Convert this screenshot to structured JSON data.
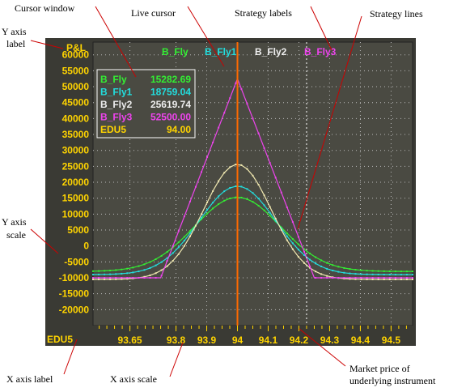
{
  "annotations": {
    "cursor_window": "Cursor window",
    "live_cursor": "Live cursor",
    "strategy_labels": "Strategy labels",
    "strategy_lines": "Strategy lines",
    "y_axis_label_line1": "Y axis",
    "y_axis_label_line2": "label",
    "y_axis_scale_line1": "Y axis",
    "y_axis_scale_line2": "scale",
    "x_axis_label": "X axis label",
    "x_axis_scale": "X axis scale",
    "market_price_line1": "Market price of",
    "market_price_line2": "underlying instrument"
  },
  "colors": {
    "panel_bg": "#4a4a42",
    "outer_bg": "#3a3a34",
    "axis_text": "#ffd400",
    "cursor_line": "#ff6a00",
    "grid": "#bbbbbb"
  },
  "chart_data": {
    "type": "line",
    "ylabel": "P&L",
    "xlabel": "EDU5",
    "xlim": [
      93.53,
      94.57
    ],
    "ylim": [
      -25000,
      64000
    ],
    "x_ticks": [
      93.65,
      93.8,
      93.9,
      94,
      94.1,
      94.2,
      94.3,
      94.4,
      94.5
    ],
    "x_tick_labels": [
      "93.65",
      "93.8",
      "93.9",
      "94",
      "94.1",
      "94.2",
      "94.3",
      "94.4",
      "94.5"
    ],
    "y_ticks": [
      60000,
      55000,
      50000,
      45000,
      40000,
      35000,
      30000,
      25000,
      20000,
      15000,
      10000,
      5000,
      0,
      -5000,
      -10000,
      -15000,
      -20000
    ],
    "y_tick_labels": [
      "60000",
      "55000",
      "50000",
      "45000",
      "40000",
      "35000",
      "30000",
      "25000",
      "20000",
      "15000",
      "10000",
      "5000",
      "0",
      "-5000",
      "-10000",
      "-15000",
      "-20000"
    ],
    "cursor_x": 94.0,
    "market_price": 94.225,
    "legend": [
      {
        "label": "B_Fly",
        "color": "#33ee33"
      },
      {
        "label": "B_Fly1",
        "color": "#22dddd"
      },
      {
        "label": "B_Fly2",
        "color": "#eeeeee"
      },
      {
        "label": "B_Fly3",
        "color": "#ee44ee"
      }
    ],
    "cursor_window": [
      {
        "label": "B_Fly",
        "value": "15282.69",
        "color": "#33ee33"
      },
      {
        "label": "B_Fly1",
        "value": "18759.04",
        "color": "#22dddd"
      },
      {
        "label": "B_Fly2",
        "value": "25619.74",
        "color": "#eeeeee"
      },
      {
        "label": "B_Fly3",
        "value": "52500.00",
        "color": "#ee44ee"
      },
      {
        "label": "EDU5",
        "value": "94.00",
        "color": "#ffd400"
      }
    ],
    "series": [
      {
        "name": "B_Fly",
        "color": "#33ee33",
        "gauss": {
          "peak": 15283,
          "base": -8000,
          "center": 94.0,
          "sigma": 0.14
        }
      },
      {
        "name": "B_Fly1",
        "color": "#22dddd",
        "gauss": {
          "peak": 18759,
          "base": -9000,
          "center": 94.0,
          "sigma": 0.125
        }
      },
      {
        "name": "B_Fly2",
        "color": "#f0e8b0",
        "gauss": {
          "peak": 25620,
          "base": -10500,
          "center": 94.0,
          "sigma": 0.11
        }
      },
      {
        "name": "B_Fly3",
        "color": "#ee44ee",
        "points": [
          [
            93.53,
            -10000
          ],
          [
            93.75,
            -10000
          ],
          [
            94.0,
            52500
          ],
          [
            94.25,
            -10000
          ],
          [
            94.57,
            -10000
          ]
        ]
      }
    ]
  }
}
